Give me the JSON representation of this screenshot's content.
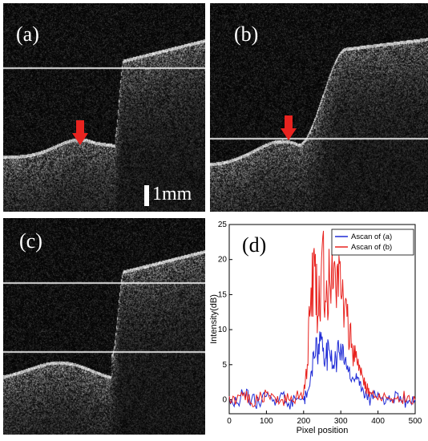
{
  "panels": [
    {
      "id": "a",
      "label": "(a)",
      "scalebar": ""
    },
    {
      "id": "b",
      "label": "(b)",
      "scalebar": "1mm"
    },
    {
      "id": "c",
      "label": "(c)",
      "scalebar": ""
    }
  ],
  "colors": {
    "arrow": "#e8231f",
    "ascan_a": "#1f2bd6",
    "ascan_b": "#e8231f"
  },
  "chart_data": {
    "type": "line",
    "title": "",
    "label": "(d)",
    "xlabel": "Pixel position",
    "ylabel": "Intensity(dB)",
    "xlim": [
      0,
      500
    ],
    "ylim": [
      -2,
      25
    ],
    "xticks": [
      0,
      100,
      200,
      300,
      400,
      500
    ],
    "yticks": [
      0,
      5,
      10,
      15,
      20,
      25
    ],
    "legend_position": "top-right",
    "series": [
      {
        "name": "Ascan of (a)",
        "color": "#1f2bd6",
        "x": [
          0,
          20,
          40,
          60,
          80,
          100,
          120,
          140,
          160,
          180,
          200,
          210,
          220,
          230,
          240,
          250,
          260,
          270,
          280,
          290,
          300,
          310,
          320,
          330,
          340,
          350,
          360,
          370,
          380,
          400,
          420,
          440,
          460,
          480,
          500
        ],
        "y": [
          0.5,
          -0.5,
          1,
          0,
          -0.5,
          0.5,
          0,
          1,
          -0.5,
          0,
          0,
          1,
          4,
          6,
          8,
          9,
          6,
          7,
          5,
          6,
          8,
          5,
          4,
          3,
          3,
          2,
          1.5,
          0.5,
          0,
          1,
          -0.5,
          0,
          0.5,
          -0.5,
          0
        ]
      },
      {
        "name": "Ascan of (b)",
        "color": "#e8231f",
        "x": [
          0,
          20,
          40,
          60,
          80,
          100,
          120,
          140,
          160,
          180,
          200,
          210,
          220,
          230,
          240,
          250,
          260,
          270,
          280,
          290,
          300,
          310,
          320,
          330,
          340,
          350,
          360,
          370,
          380,
          400,
          420,
          440,
          460,
          480,
          500
        ],
        "y": [
          0.5,
          0,
          1,
          -0.5,
          0,
          1,
          0.5,
          0,
          0,
          0.5,
          1,
          5,
          16,
          19,
          12,
          22,
          14,
          17,
          16,
          19,
          15,
          13,
          10,
          8,
          6,
          5,
          3,
          1.5,
          1,
          0,
          0.5,
          -0.5,
          0,
          0.5,
          0
        ]
      }
    ]
  }
}
